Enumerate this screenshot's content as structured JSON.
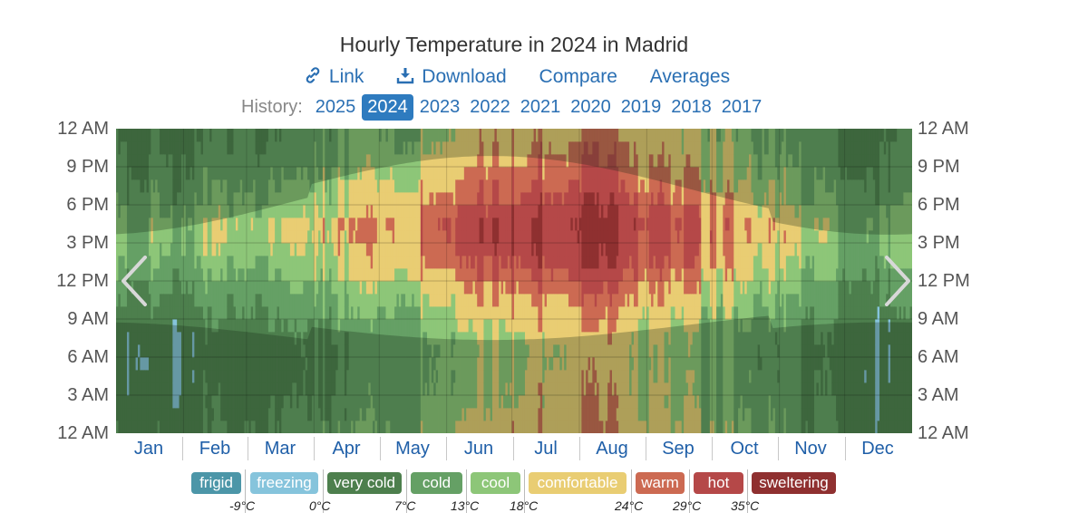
{
  "title": "Hourly Temperature in 2024 in Madrid",
  "actions": [
    {
      "label": "Link",
      "icon": "link-icon"
    },
    {
      "label": "Download",
      "icon": "download-icon"
    },
    {
      "label": "Compare",
      "icon": ""
    },
    {
      "label": "Averages",
      "icon": ""
    }
  ],
  "history": {
    "label": "History:",
    "years": [
      "2025",
      "2024",
      "2023",
      "2022",
      "2021",
      "2020",
      "2019",
      "2018",
      "2017"
    ],
    "selected": "2024"
  },
  "nav": {
    "prev_icon": "chevron-left-icon",
    "next_icon": "chevron-right-icon"
  },
  "chart_data": {
    "type": "heatmap",
    "title": "Hourly Temperature in 2024 in Madrid",
    "x_labels": [
      "Jan",
      "Feb",
      "Mar",
      "Apr",
      "May",
      "Jun",
      "Jul",
      "Aug",
      "Sep",
      "Oct",
      "Nov",
      "Dec"
    ],
    "y_labels": [
      "12 AM",
      "9 PM",
      "6 PM",
      "3 PM",
      "12 PM",
      "9 AM",
      "6 AM",
      "3 AM",
      "12 AM"
    ],
    "y_range_hours": [
      0,
      24
    ],
    "grid": true,
    "z_unit": "°C",
    "monthly_min_max_c": [
      {
        "month": "Jan",
        "min": 2,
        "max": 14
      },
      {
        "month": "Feb",
        "min": 3,
        "max": 16
      },
      {
        "month": "Mar",
        "min": 6,
        "max": 19
      },
      {
        "month": "Apr",
        "min": 8,
        "max": 21
      },
      {
        "month": "May",
        "min": 11,
        "max": 26
      },
      {
        "month": "Jun",
        "min": 16,
        "max": 32
      },
      {
        "month": "Jul",
        "min": 20,
        "max": 36
      },
      {
        "month": "Aug",
        "min": 20,
        "max": 35
      },
      {
        "month": "Sep",
        "min": 15,
        "max": 29
      },
      {
        "month": "Oct",
        "min": 11,
        "max": 23
      },
      {
        "month": "Nov",
        "min": 6,
        "max": 17
      },
      {
        "month": "Dec",
        "min": 2,
        "max": 13
      }
    ],
    "legend": [
      {
        "label": "frigid",
        "color": "#4c96a8"
      },
      {
        "label": "freezing",
        "color": "#86c4dc"
      },
      {
        "label": "very cold",
        "color": "#4d7f4d"
      },
      {
        "label": "cold",
        "color": "#65a065"
      },
      {
        "label": "cool",
        "color": "#8dc678"
      },
      {
        "label": "comfortable",
        "color": "#e9cd73"
      },
      {
        "label": "warm",
        "color": "#cc6a52"
      },
      {
        "label": "hot",
        "color": "#b54848"
      },
      {
        "label": "sweltering",
        "color": "#8f3030"
      }
    ],
    "thresholds": [
      "-9°C",
      "0°C",
      "7°C",
      "13°C",
      "18°C",
      "24°C",
      "29°C",
      "35°C"
    ],
    "threshold_values": [
      -9,
      0,
      7,
      13,
      18,
      24,
      29,
      35
    ]
  }
}
